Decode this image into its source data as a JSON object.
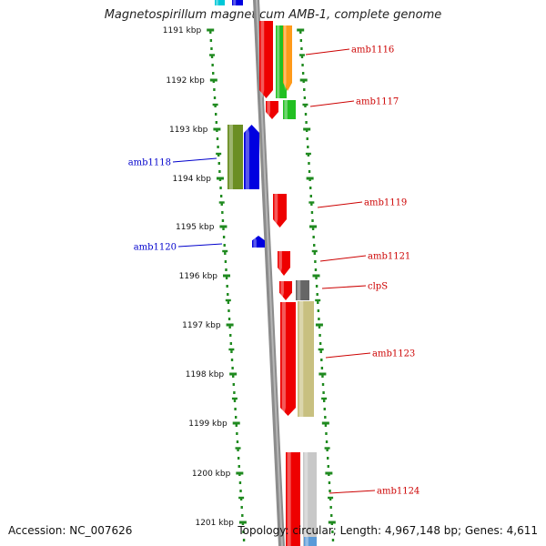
{
  "title": "Magnetospirillum magneticum AMB-1, complete genome",
  "footer": {
    "accession": "Accession: NC_007626",
    "summary": "Topology: circular; Length: 4,967,148 bp; Genes: 4,611"
  },
  "colors": {
    "ruler": "#1f8a1f",
    "backbone": "#8c8c8c",
    "label_right": "#cc0000",
    "label_left": "#0000cc"
  },
  "ticks": [
    "1191 kbp",
    "1192 kbp",
    "1193 kbp",
    "1194 kbp",
    "1195 kbp",
    "1196 kbp",
    "1197 kbp",
    "1198 kbp",
    "1199 kbp",
    "1200 kbp",
    "1201 kbp"
  ],
  "gene_labels": {
    "right": [
      "amb1116",
      "amb1117",
      "amb1119",
      "amb1121",
      "clpS",
      "amb1123",
      "amb1124"
    ],
    "left": [
      "amb1118",
      "amb1120"
    ]
  }
}
